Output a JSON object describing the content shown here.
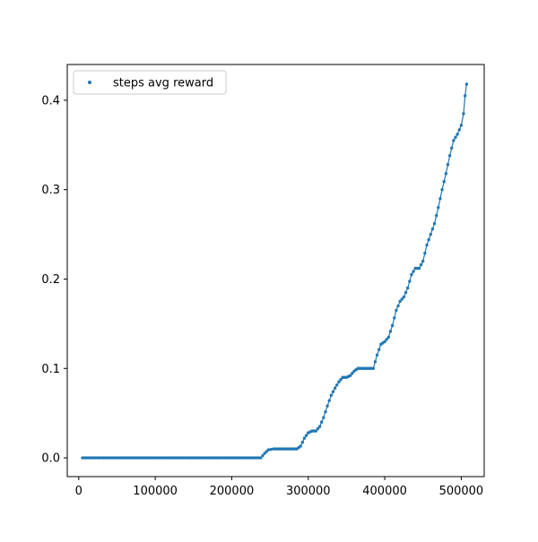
{
  "chart_data": {
    "type": "scatter",
    "title": "",
    "xlabel": "",
    "ylabel": "",
    "xlim": [
      -15000,
      530000
    ],
    "ylim": [
      -0.021,
      0.44
    ],
    "x_ticks": [
      0,
      100000,
      200000,
      300000,
      400000,
      500000
    ],
    "x_tick_labels": [
      "0",
      "100000",
      "200000",
      "300000",
      "400000",
      "500000"
    ],
    "y_ticks": [
      0.0,
      0.1,
      0.2,
      0.3,
      0.4
    ],
    "y_tick_labels": [
      "0.0",
      "0.1",
      "0.2",
      "0.3",
      "0.4"
    ],
    "grid": false,
    "legend_position": "upper-left",
    "series": [
      {
        "name": "steps avg reward",
        "color": "#1f77b4",
        "marker": "dot",
        "points": [
          [
            5000,
            0.0
          ],
          [
            30000,
            0.0
          ],
          [
            60000,
            0.0
          ],
          [
            90000,
            0.0
          ],
          [
            120000,
            0.0
          ],
          [
            150000,
            0.0
          ],
          [
            180000,
            0.0
          ],
          [
            210000,
            0.0
          ],
          [
            238000,
            0.0
          ],
          [
            243000,
            0.005
          ],
          [
            248000,
            0.009
          ],
          [
            255000,
            0.01
          ],
          [
            265000,
            0.01
          ],
          [
            275000,
            0.01
          ],
          [
            285000,
            0.01
          ],
          [
            290000,
            0.013
          ],
          [
            295000,
            0.022
          ],
          [
            300000,
            0.028
          ],
          [
            305000,
            0.03
          ],
          [
            310000,
            0.03
          ],
          [
            315000,
            0.035
          ],
          [
            320000,
            0.045
          ],
          [
            325000,
            0.058
          ],
          [
            330000,
            0.07
          ],
          [
            335000,
            0.078
          ],
          [
            340000,
            0.085
          ],
          [
            345000,
            0.09
          ],
          [
            350000,
            0.09
          ],
          [
            355000,
            0.092
          ],
          [
            360000,
            0.097
          ],
          [
            365000,
            0.1
          ],
          [
            375000,
            0.1
          ],
          [
            385000,
            0.1
          ],
          [
            390000,
            0.115
          ],
          [
            395000,
            0.127
          ],
          [
            400000,
            0.13
          ],
          [
            405000,
            0.135
          ],
          [
            410000,
            0.148
          ],
          [
            415000,
            0.165
          ],
          [
            420000,
            0.175
          ],
          [
            425000,
            0.18
          ],
          [
            430000,
            0.19
          ],
          [
            435000,
            0.205
          ],
          [
            440000,
            0.212
          ],
          [
            445000,
            0.212
          ],
          [
            450000,
            0.22
          ],
          [
            455000,
            0.238
          ],
          [
            460000,
            0.25
          ],
          [
            465000,
            0.262
          ],
          [
            470000,
            0.28
          ],
          [
            475000,
            0.3
          ],
          [
            480000,
            0.318
          ],
          [
            485000,
            0.338
          ],
          [
            490000,
            0.355
          ],
          [
            495000,
            0.362
          ],
          [
            500000,
            0.372
          ],
          [
            503000,
            0.385
          ],
          [
            505000,
            0.405
          ],
          [
            507000,
            0.418
          ]
        ]
      }
    ]
  }
}
